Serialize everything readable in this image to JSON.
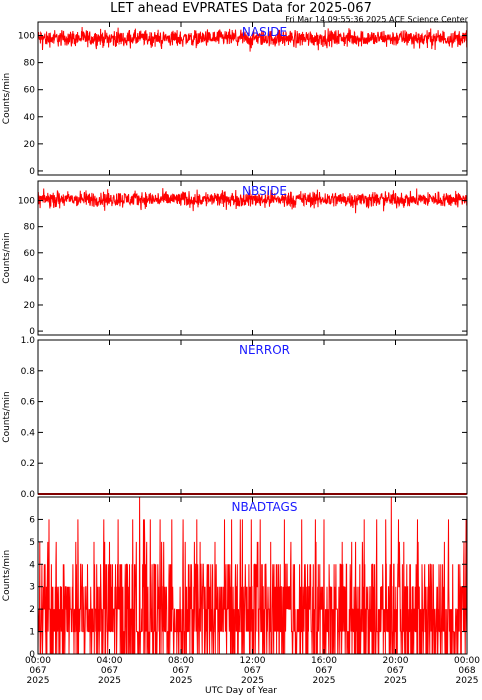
{
  "title": "LET ahead EVPRATES Data for 2025-067",
  "timestamp": "Fri Mar 14 09:55:36 2025 ACE Science Center",
  "x_axis_title": "UTC Day of Year",
  "colors": {
    "series": "#ff0000",
    "panel_label": "#1a1aff",
    "axes": "#000000"
  },
  "chart_data": [
    {
      "type": "line",
      "name": "NASIDE",
      "ylabel": "Counts/min",
      "ylim": [
        -3,
        110
      ],
      "yticks": [
        0,
        20,
        40,
        60,
        80,
        100
      ],
      "ytick_labels": [
        "0",
        "20",
        "40",
        "60",
        "80",
        "100"
      ],
      "xlim": [
        0,
        24
      ],
      "series": [
        {
          "pattern": "noise",
          "mean": 98,
          "spread": 5
        }
      ]
    },
    {
      "type": "line",
      "name": "NBSIDE",
      "ylabel": "Counts/min",
      "ylim": [
        -3,
        115
      ],
      "yticks": [
        0,
        20,
        40,
        60,
        80,
        100
      ],
      "ytick_labels": [
        "0",
        "20",
        "40",
        "60",
        "80",
        "100"
      ],
      "xlim": [
        0,
        24
      ],
      "series": [
        {
          "pattern": "noise",
          "mean": 101,
          "spread": 5
        }
      ]
    },
    {
      "type": "line",
      "name": "NERROR",
      "ylabel": "Counts/min",
      "ylim": [
        0,
        1
      ],
      "yticks": [
        0,
        0.2,
        0.4,
        0.6,
        0.8,
        1.0
      ],
      "ytick_labels": [
        "0.0",
        "0.2",
        "0.4",
        "0.6",
        "0.8",
        "1.0"
      ],
      "xlim": [
        0,
        24
      ],
      "series": [
        {
          "pattern": "zero",
          "mean": 0,
          "spread": 0
        }
      ]
    },
    {
      "type": "line",
      "name": "NBADTAGS",
      "ylabel": "Counts/min",
      "ylim": [
        0,
        7
      ],
      "yticks": [
        0,
        1,
        2,
        3,
        4,
        5,
        6
      ],
      "ytick_labels": [
        "0",
        "1",
        "2",
        "3",
        "4",
        "5",
        "6"
      ],
      "xlim": [
        0,
        24
      ],
      "series": [
        {
          "pattern": "counts",
          "mean": 1.8,
          "spread": 6
        }
      ]
    }
  ],
  "x_ticks": [
    {
      "hour": 0,
      "time": "00:00",
      "doy": "067",
      "year": "2025"
    },
    {
      "hour": 4,
      "time": "04:00",
      "doy": "067",
      "year": "2025"
    },
    {
      "hour": 8,
      "time": "08:00",
      "doy": "067",
      "year": "2025"
    },
    {
      "hour": 12,
      "time": "12:00",
      "doy": "067",
      "year": "2025"
    },
    {
      "hour": 16,
      "time": "16:00",
      "doy": "067",
      "year": "2025"
    },
    {
      "hour": 20,
      "time": "20:00",
      "doy": "067",
      "year": "2025"
    },
    {
      "hour": 24,
      "time": "00:00",
      "doy": "068",
      "year": "2025"
    }
  ]
}
